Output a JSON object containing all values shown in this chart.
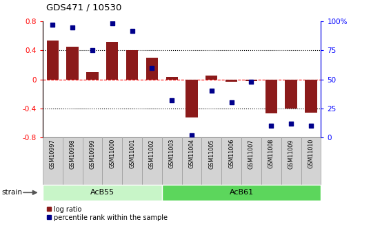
{
  "title": "GDS471 / 10530",
  "samples": [
    "GSM10997",
    "GSM10998",
    "GSM10999",
    "GSM11000",
    "GSM11001",
    "GSM11002",
    "GSM11003",
    "GSM11004",
    "GSM11005",
    "GSM11006",
    "GSM11007",
    "GSM11008",
    "GSM11009",
    "GSM11010"
  ],
  "log_ratio": [
    0.54,
    0.45,
    0.1,
    0.52,
    0.4,
    0.3,
    0.03,
    -0.52,
    0.05,
    -0.03,
    -0.02,
    -0.47,
    -0.4,
    -0.46
  ],
  "percentile": [
    97,
    95,
    75,
    98,
    92,
    60,
    32,
    2,
    40,
    30,
    48,
    10,
    12,
    10
  ],
  "groups": [
    {
      "label": "AcB55",
      "start": 0,
      "end": 6,
      "color": "#c8f5c8"
    },
    {
      "label": "AcB61",
      "start": 6,
      "end": 14,
      "color": "#5cd65c"
    }
  ],
  "bar_color": "#8B1A1A",
  "dot_color": "#00008B",
  "ylim": [
    -0.8,
    0.8
  ],
  "y2lim": [
    0,
    100
  ],
  "yticks": [
    -0.8,
    -0.4,
    0.0,
    0.4,
    0.8
  ],
  "ytick_labels": [
    "-0.8",
    "-0.4",
    "0",
    "0.4",
    "0.8"
  ],
  "y2ticks": [
    0,
    25,
    50,
    75,
    100
  ],
  "y2tick_labels": [
    "0",
    "25",
    "50",
    "75",
    "100%"
  ],
  "hline_dotted_vals": [
    0.4,
    -0.4
  ],
  "hline_dashed_val": 0.0,
  "strain_label": "strain",
  "legend_items": [
    "log ratio",
    "percentile rank within the sample"
  ],
  "cell_bg": "#d3d3d3",
  "cell_edge": "#999999"
}
